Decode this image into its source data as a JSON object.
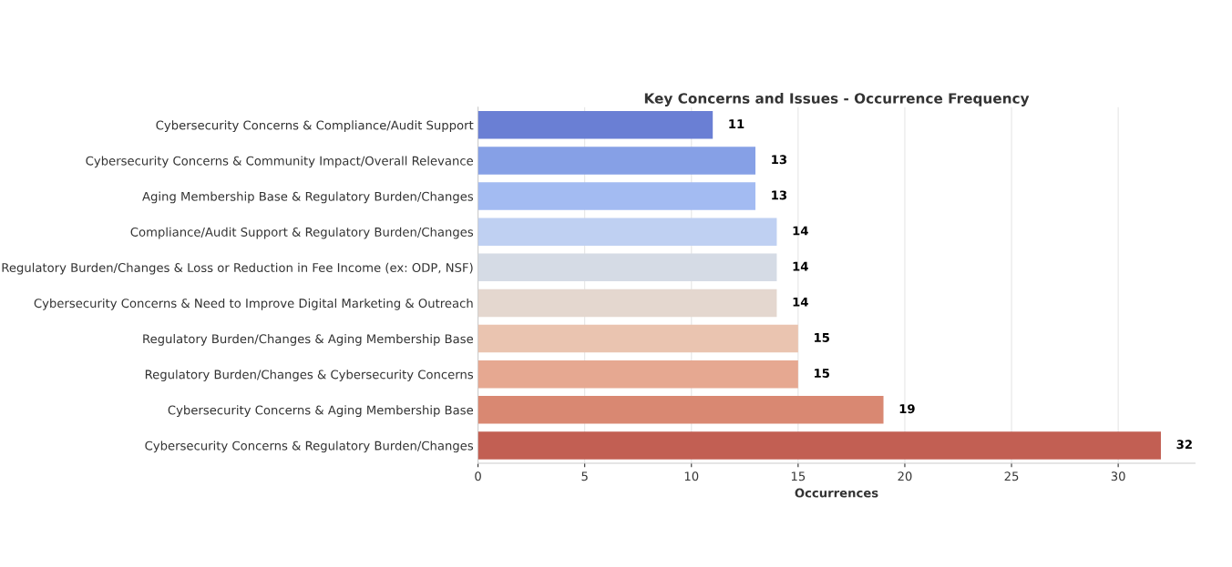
{
  "chart_data": {
    "type": "bar",
    "orientation": "horizontal",
    "title": "Key Concerns and Issues - Occurrence Frequency",
    "xlabel": "Occurrences",
    "categories": [
      "Cybersecurity Concerns & Compliance/Audit Support",
      "Cybersecurity Concerns & Community Impact/Overall Relevance",
      "Aging Membership Base & Regulatory Burden/Changes",
      "Compliance/Audit Support & Regulatory Burden/Changes",
      "Regulatory Burden/Changes & Loss or Reduction in Fee Income (ex: ODP, NSF)",
      "Cybersecurity Concerns & Need to Improve Digital Marketing & Outreach",
      "Regulatory Burden/Changes & Aging Membership Base",
      "Regulatory Burden/Changes & Cybersecurity Concerns",
      "Cybersecurity Concerns & Aging Membership Base",
      "Cybersecurity Concerns & Regulatory Burden/Changes"
    ],
    "values": [
      11,
      13,
      13,
      14,
      14,
      14,
      15,
      15,
      19,
      32
    ],
    "colors": [
      "#6a7fd4",
      "#86a0e6",
      "#a3bbf2",
      "#bfd0f2",
      "#d5dbe5",
      "#e4d7cf",
      "#eac4b0",
      "#e6a891",
      "#d98872",
      "#c25f53"
    ],
    "xlim": [
      0,
      33.6
    ],
    "xticks": [
      0,
      5,
      10,
      15,
      20,
      25,
      30
    ],
    "grid": "x",
    "data_labels": true
  }
}
